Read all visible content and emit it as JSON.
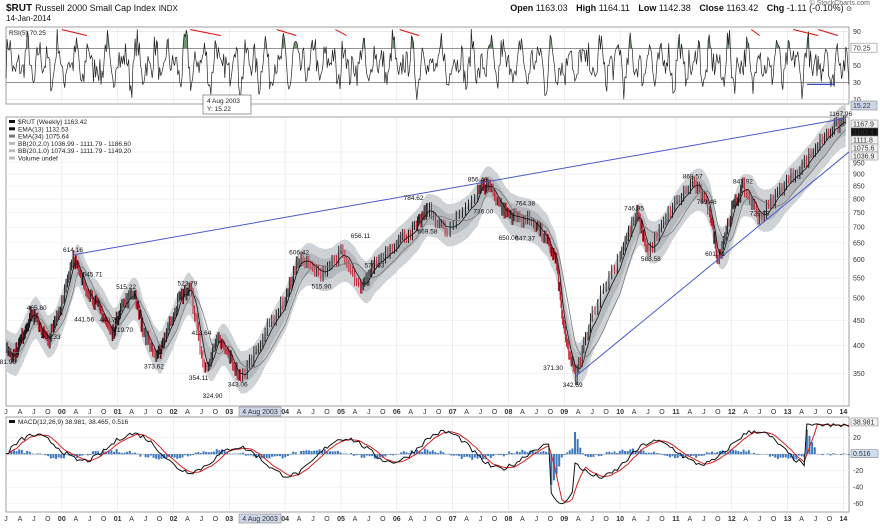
{
  "header": {
    "symbol": "$RUT",
    "title": "Russell 2000 Small Cap Index",
    "exchange": "INDX",
    "date": "14-Jan-2014",
    "open_label": "Open",
    "open": "1163.03",
    "high_label": "High",
    "high": "1164.11",
    "low_label": "Low",
    "low": "1142.38",
    "close_label": "Close",
    "close": "1163.42",
    "chg_label": "Chg",
    "chg": "-1.11 (-0.10%)",
    "attribution": "© StockCharts.com"
  },
  "rsi_panel": {
    "legend": "RSI(5) 70.25",
    "last_value": "70.25",
    "ticks": [
      "90",
      "70",
      "50",
      "30",
      "10"
    ],
    "callout_date": "4 Aug 2003",
    "callout_value": "Y: 15.22",
    "callout_last": "15.22",
    "colors": {
      "line": "#222222",
      "overbought_fill": "#4e7a55",
      "divergence": "#e02020",
      "support": "#2030c0"
    }
  },
  "price_panel": {
    "legend": [
      "$RUT (Weekly) 1163.42",
      "EMA(13) 1132.53",
      "EMA(34) 1075.64",
      "BB(20,2.0) 1036.99 - 1111.79 - 1186.60",
      "BB(20,1.0) 1074.39 - 1111.79 - 1149.20",
      "Volume undef"
    ],
    "y_ticks": [
      "1000",
      "950",
      "900",
      "850",
      "800",
      "750",
      "700",
      "650",
      "600",
      "550",
      "500",
      "450",
      "400",
      "350"
    ],
    "right_tags": [
      "1167.9",
      "1163.4",
      "1111.8",
      "1075.6",
      "1036.9"
    ],
    "colors": {
      "trendline": "#4a58c8",
      "ema13": "#111111",
      "ema34": "#777777",
      "band_outer": "#cfd3d6",
      "band_inner": "#b4b9bd",
      "up": "#111111",
      "down": "#c0182a"
    }
  },
  "macd_panel": {
    "legend": "MACD(12,26,9) 38.981, 38.465, 0.516",
    "ticks": [
      "40",
      "20",
      "0",
      "-20",
      "-40",
      "-60"
    ],
    "right_tags": [
      "38.981",
      "0.516"
    ],
    "colors": {
      "macd": "#111111",
      "signal": "#d02020",
      "histogram": "#3b78c2"
    }
  },
  "x_axis": {
    "labels": [
      "J",
      "A",
      "J",
      "O",
      "00",
      "A",
      "J",
      "O",
      "01",
      "A",
      "J",
      "O",
      "02",
      "A",
      "J",
      "O",
      "03",
      "A",
      "J",
      "O",
      "04",
      "A",
      "J",
      "O",
      "05",
      "A",
      "J",
      "O",
      "06",
      "A",
      "J",
      "O",
      "07",
      "A",
      "J",
      "O",
      "08",
      "A",
      "J",
      "O",
      "09",
      "A",
      "J",
      "O",
      "10",
      "A",
      "J",
      "O",
      "11",
      "A",
      "J",
      "O",
      "12",
      "A",
      "J",
      "O",
      "13",
      "A",
      "J",
      "O",
      "14"
    ],
    "highlight": "4 Aug 2003"
  },
  "chart_data": {
    "type": "line",
    "title": "Russell 2000 Small Cap Index",
    "x_unit": "year",
    "xlim": [
      1999.0,
      2014.1
    ],
    "ylim": [
      300,
      1180
    ],
    "y_scale": "log",
    "series": [
      {
        "name": "$RUT (Weekly)",
        "x": [
          1999.0,
          1999.15,
          1999.3,
          1999.45,
          1999.6,
          1999.75,
          1999.95,
          2000.2,
          2000.35,
          2000.55,
          2000.7,
          2000.9,
          2001.05,
          2001.3,
          2001.45,
          2001.7,
          2001.85,
          2002.1,
          2002.3,
          2002.55,
          2002.8,
          2003.0,
          2003.2,
          2003.6,
          2004.0,
          2004.25,
          2004.6,
          2005.0,
          2005.35,
          2005.6,
          2006.0,
          2006.35,
          2006.55,
          2006.9,
          2007.45,
          2007.65,
          2007.9,
          2008.1,
          2008.45,
          2008.7,
          2008.85,
          2009.0,
          2009.2,
          2009.5,
          2010.0,
          2010.3,
          2010.5,
          2010.9,
          2011.3,
          2011.6,
          2011.75,
          2012.0,
          2012.2,
          2012.5,
          2012.9,
          2013.3,
          2013.7,
          2014.04
        ],
        "values": [
          395,
          381.96,
          420,
          465.8,
          440,
          406.33,
          470,
          614.16,
          545.71,
          500,
          470,
          420,
          480,
          515.22,
          430,
          373.62,
          420,
          500,
          523.79,
          354.11,
          410,
          380,
          340,
          420,
          500,
          606.42,
          560,
          620,
          515.9,
          590,
          656.11,
          700,
          763,
          680,
          840,
          856.48,
          760,
          735,
          720,
          650,
          600,
          420,
          342.59,
          470,
          620,
          746.95,
          620,
          760,
          868.57,
          760,
          601.71,
          760,
          847.92,
          729.73,
          850,
          950,
          1100,
          1163.42
        ]
      },
      {
        "name": "RSI(5)",
        "last": 70.25
      },
      {
        "name": "MACD(12,26,9)",
        "values": [
          38.981,
          38.465,
          0.516
        ]
      }
    ],
    "annotations": [
      {
        "x": 1999.0,
        "y": 381.96,
        "text": "381.96"
      },
      {
        "x": 1999.55,
        "y": 465.8,
        "text": "465.80"
      },
      {
        "x": 1999.8,
        "y": 406.33,
        "text": "406.33"
      },
      {
        "x": 2000.2,
        "y": 614.16,
        "text": "614.16"
      },
      {
        "x": 2000.4,
        "y": 441.56,
        "text": "441.56"
      },
      {
        "x": 2000.55,
        "y": 545.71,
        "text": "545.71"
      },
      {
        "x": 2000.85,
        "y": 440.76,
        "text": "440.76"
      },
      {
        "x": 2001.15,
        "y": 515.22,
        "text": "515.22"
      },
      {
        "x": 2001.1,
        "y": 419.7,
        "text": "419.70"
      },
      {
        "x": 2001.65,
        "y": 373.62,
        "text": "373.62"
      },
      {
        "x": 2002.25,
        "y": 523.79,
        "text": "523.79"
      },
      {
        "x": 2002.5,
        "y": 413.64,
        "text": "413.64"
      },
      {
        "x": 2002.45,
        "y": 354.11,
        "text": "354.11"
      },
      {
        "x": 2002.7,
        "y": 324.9,
        "text": "324.90"
      },
      {
        "x": 2003.15,
        "y": 343.06,
        "text": "343.06"
      },
      {
        "x": 2004.25,
        "y": 606.42,
        "text": "606.42"
      },
      {
        "x": 2004.65,
        "y": 515.9,
        "text": "515.90"
      },
      {
        "x": 2005.35,
        "y": 656.11,
        "text": "656.11"
      },
      {
        "x": 2005.6,
        "y": 570.03,
        "text": "570.03"
      },
      {
        "x": 2006.3,
        "y": 784.62,
        "text": "784.62"
      },
      {
        "x": 2006.55,
        "y": 669.58,
        "text": "669.58"
      },
      {
        "x": 2007.45,
        "y": 856.48,
        "text": "856.48"
      },
      {
        "x": 2007.55,
        "y": 736.0,
        "text": "736.00"
      },
      {
        "x": 2008.0,
        "y": 650.0,
        "text": "650.00"
      },
      {
        "x": 2008.3,
        "y": 764.38,
        "text": "764.38"
      },
      {
        "x": 2008.3,
        "y": 647.37,
        "text": "647.37"
      },
      {
        "x": 2008.8,
        "y": 371.3,
        "text": "371.30"
      },
      {
        "x": 2009.15,
        "y": 342.59,
        "text": "342.59"
      },
      {
        "x": 2010.25,
        "y": 746.95,
        "text": "746.95"
      },
      {
        "x": 2010.55,
        "y": 588.58,
        "text": "588.58"
      },
      {
        "x": 2011.3,
        "y": 868.57,
        "text": "868.57"
      },
      {
        "x": 2011.55,
        "y": 769.46,
        "text": "769.46"
      },
      {
        "x": 2011.7,
        "y": 601.71,
        "text": "601.71"
      },
      {
        "x": 2012.2,
        "y": 847.92,
        "text": "847.92"
      },
      {
        "x": 2012.5,
        "y": 729.73,
        "text": "729.73"
      },
      {
        "x": 2013.95,
        "y": 1167.96,
        "text": "1167.96"
      }
    ],
    "legend": "top-left",
    "grid": true
  }
}
